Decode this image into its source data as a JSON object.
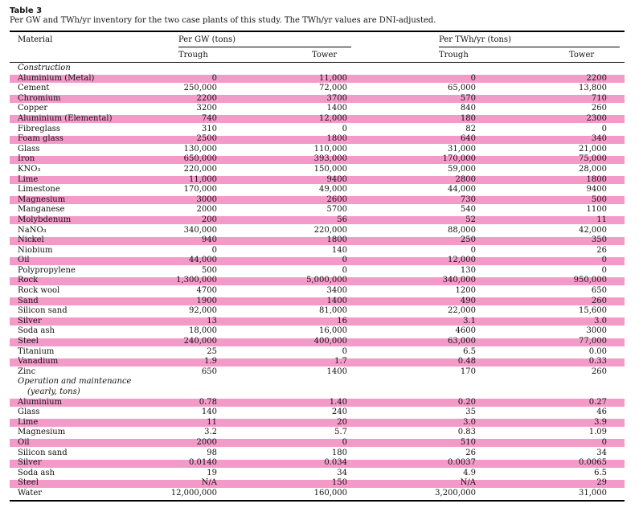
{
  "caption": {
    "label": "Table 3",
    "text": "Per GW and TWh/yr inventory for the two case plants of this study. The TWh/yr values are DNI-adjusted."
  },
  "headers": {
    "material": "Material",
    "per_gw": "Per GW (tons)",
    "per_twh": "Per TWh/yr (tons)",
    "trough": "Trough",
    "tower": "Tower"
  },
  "sections": {
    "construction": "Construction",
    "om_line1": "Operation and maintenance",
    "om_line2": "(yearly, tons)"
  },
  "construction_rows": [
    {
      "m": "Aluminium (Metal)",
      "v": [
        "0",
        "11,000",
        "0",
        "2200"
      ],
      "hl": true
    },
    {
      "m": "Cement",
      "v": [
        "250,000",
        "72,000",
        "65,000",
        "13,800"
      ],
      "hl": false
    },
    {
      "m": "Chromium",
      "v": [
        "2200",
        "3700",
        "570",
        "710"
      ],
      "hl": true
    },
    {
      "m": "Copper",
      "v": [
        "3200",
        "1400",
        "840",
        "260"
      ],
      "hl": false
    },
    {
      "m": "Aluminium (Elemental)",
      "v": [
        "740",
        "12,000",
        "180",
        "2300"
      ],
      "hl": true
    },
    {
      "m": "Fibreglass",
      "v": [
        "310",
        "0",
        "82",
        "0"
      ],
      "hl": false
    },
    {
      "m": "Foam glass",
      "v": [
        "2500",
        "1800",
        "640",
        "340"
      ],
      "hl": true
    },
    {
      "m": "Glass",
      "v": [
        "130,000",
        "110,000",
        "31,000",
        "21,000"
      ],
      "hl": false
    },
    {
      "m": "Iron",
      "v": [
        "650,000",
        "393,000",
        "170,000",
        "75,000"
      ],
      "hl": true
    },
    {
      "m": "KNO₃",
      "v": [
        "220,000",
        "150,000",
        "59,000",
        "28,000"
      ],
      "hl": false
    },
    {
      "m": "Lime",
      "v": [
        "11,000",
        "9400",
        "2800",
        "1800"
      ],
      "hl": true
    },
    {
      "m": "Limestone",
      "v": [
        "170,000",
        "49,000",
        "44,000",
        "9400"
      ],
      "hl": false
    },
    {
      "m": "Magnesium",
      "v": [
        "3000",
        "2600",
        "730",
        "500"
      ],
      "hl": true
    },
    {
      "m": "Manganese",
      "v": [
        "2000",
        "5700",
        "540",
        "1100"
      ],
      "hl": false
    },
    {
      "m": "Molybdenum",
      "v": [
        "200",
        "56",
        "52",
        "11"
      ],
      "hl": true
    },
    {
      "m": "NaNO₃",
      "v": [
        "340,000",
        "220,000",
        "88,000",
        "42,000"
      ],
      "hl": false
    },
    {
      "m": "Nickel",
      "v": [
        "940",
        "1800",
        "250",
        "350"
      ],
      "hl": true
    },
    {
      "m": "Niobium",
      "v": [
        "0",
        "140",
        "0",
        "26"
      ],
      "hl": false
    },
    {
      "m": "Oil",
      "v": [
        "44,000",
        "0",
        "12,000",
        "0"
      ],
      "hl": true
    },
    {
      "m": "Polypropylene",
      "v": [
        "500",
        "0",
        "130",
        "0"
      ],
      "hl": false
    },
    {
      "m": "Rock",
      "v": [
        "1,300,000",
        "5,000,000",
        "340,000",
        "950,000"
      ],
      "hl": true
    },
    {
      "m": "Rock wool",
      "v": [
        "4700",
        "3400",
        "1200",
        "650"
      ],
      "hl": false
    },
    {
      "m": "Sand",
      "v": [
        "1900",
        "1400",
        "490",
        "260"
      ],
      "hl": true
    },
    {
      "m": "Silicon sand",
      "v": [
        "92,000",
        "81,000",
        "22,000",
        "15,600"
      ],
      "hl": false
    },
    {
      "m": "Silver",
      "v": [
        "13",
        "16",
        "3.1",
        "3.0"
      ],
      "hl": true
    },
    {
      "m": "Soda ash",
      "v": [
        "18,000",
        "16,000",
        "4600",
        "3000"
      ],
      "hl": false
    },
    {
      "m": "Steel",
      "v": [
        "240,000",
        "400,000",
        "63,000",
        "77,000"
      ],
      "hl": true
    },
    {
      "m": "Titanium",
      "v": [
        "25",
        "0",
        "6.5",
        "0.00"
      ],
      "hl": false
    },
    {
      "m": "Vanadium",
      "v": [
        "1.9",
        "1.7",
        "0.48",
        "0.33"
      ],
      "hl": true
    },
    {
      "m": "Zinc",
      "v": [
        "650",
        "1400",
        "170",
        "260"
      ],
      "hl": false
    }
  ],
  "om_rows": [
    {
      "m": "Aluminium",
      "v": [
        "0.78",
        "1.40",
        "0.20",
        "0.27"
      ],
      "hl": true
    },
    {
      "m": "Glass",
      "v": [
        "140",
        "240",
        "35",
        "46"
      ],
      "hl": false
    },
    {
      "m": "Lime",
      "v": [
        "11",
        "20",
        "3.0",
        "3.9"
      ],
      "hl": true
    },
    {
      "m": "Magnesium",
      "v": [
        "3.2",
        "5.7",
        "0.83",
        "1.09"
      ],
      "hl": false
    },
    {
      "m": "Oil",
      "v": [
        "2000",
        "0",
        "510",
        "0"
      ],
      "hl": true
    },
    {
      "m": "Silicon sand",
      "v": [
        "98",
        "180",
        "26",
        "34"
      ],
      "hl": false
    },
    {
      "m": "Silver",
      "v": [
        "0.0140",
        "0.034",
        "0.0037",
        "0.0065"
      ],
      "hl": true
    },
    {
      "m": "Soda ash",
      "v": [
        "19",
        "34",
        "4.9",
        "6.5"
      ],
      "hl": false
    },
    {
      "m": "Steel",
      "v": [
        "N/A",
        "150",
        "N/A",
        "29"
      ],
      "hl": true
    },
    {
      "m": "Water",
      "v": [
        "12,000,000",
        "160,000",
        "3,200,000",
        "31,000"
      ],
      "hl": false
    }
  ]
}
